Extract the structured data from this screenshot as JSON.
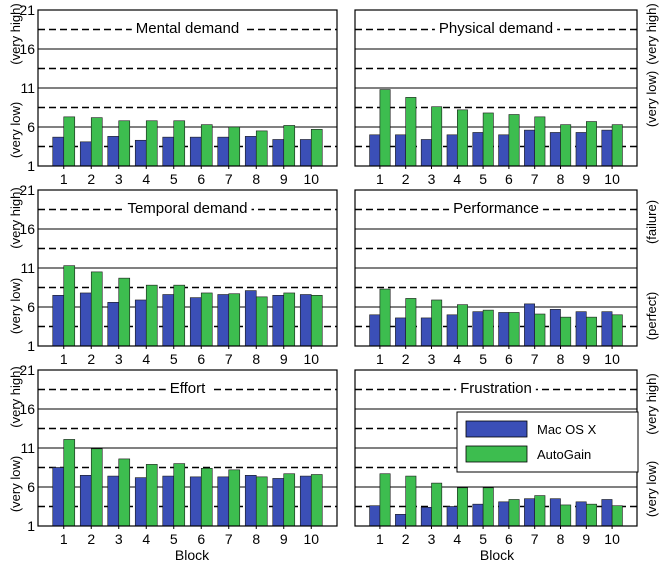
{
  "figure": {
    "x_title": "Block",
    "left_scale": {
      "low": "(very low)",
      "high": "(very high)"
    },
    "right_scale_default": {
      "low": "(very low)",
      "high": "(very high)"
    },
    "right_scale_performance": {
      "low": "(perfect)",
      "high": "(failure)"
    }
  },
  "legend": {
    "entries": [
      {
        "label": "Mac OS X",
        "color": "#3b4fb7"
      },
      {
        "label": "AutoGain",
        "color": "#3dbd4f"
      }
    ]
  },
  "colors": {
    "mac": "#3b4fb7",
    "autogain": "#3dbd4f"
  },
  "chart_data": [
    {
      "type": "bar",
      "title": "Mental demand",
      "categories": [
        "1",
        "2",
        "3",
        "4",
        "5",
        "6",
        "7",
        "8",
        "9",
        "10"
      ],
      "ylim": [
        1,
        21
      ],
      "yticks": [
        1,
        6,
        11,
        16,
        21
      ],
      "gridlines": [
        3.5,
        8.5,
        13.5,
        18.5
      ],
      "grid": "dashed",
      "series": [
        {
          "name": "Mac OS X",
          "values": [
            4.7,
            4.1,
            4.8,
            4.3,
            4.7,
            4.7,
            4.7,
            4.8,
            4.4,
            4.4
          ]
        },
        {
          "name": "AutoGain",
          "values": [
            7.3,
            7.2,
            6.8,
            6.8,
            6.8,
            6.3,
            6.0,
            5.5,
            6.2,
            5.7
          ]
        }
      ]
    },
    {
      "type": "bar",
      "title": "Physical demand",
      "categories": [
        "1",
        "2",
        "3",
        "4",
        "5",
        "6",
        "7",
        "8",
        "9",
        "10"
      ],
      "ylim": [
        1,
        21
      ],
      "yticks": [
        1,
        6,
        11,
        16,
        21
      ],
      "gridlines": [
        3.5,
        8.5,
        13.5,
        18.5
      ],
      "grid": "dashed",
      "series": [
        {
          "name": "Mac OS X",
          "values": [
            5.0,
            5.0,
            4.4,
            5.0,
            5.3,
            5.0,
            5.6,
            5.3,
            5.3,
            5.6
          ]
        },
        {
          "name": "AutoGain",
          "values": [
            10.8,
            9.8,
            8.6,
            8.2,
            7.8,
            7.6,
            7.3,
            6.3,
            6.7,
            6.3
          ]
        }
      ]
    },
    {
      "type": "bar",
      "title": "Temporal demand",
      "categories": [
        "1",
        "2",
        "3",
        "4",
        "5",
        "6",
        "7",
        "8",
        "9",
        "10"
      ],
      "ylim": [
        1,
        21
      ],
      "yticks": [
        1,
        6,
        11,
        16,
        21
      ],
      "gridlines": [
        3.5,
        8.5,
        13.5,
        18.5
      ],
      "grid": "dashed",
      "series": [
        {
          "name": "Mac OS X",
          "values": [
            7.5,
            7.8,
            6.6,
            6.9,
            7.6,
            7.2,
            7.6,
            8.1,
            7.5,
            7.6
          ]
        },
        {
          "name": "AutoGain",
          "values": [
            11.3,
            10.5,
            9.7,
            8.8,
            8.8,
            7.8,
            7.7,
            7.3,
            7.8,
            7.5
          ]
        }
      ]
    },
    {
      "type": "bar",
      "title": "Performance",
      "categories": [
        "1",
        "2",
        "3",
        "4",
        "5",
        "6",
        "7",
        "8",
        "9",
        "10"
      ],
      "ylim": [
        1,
        21
      ],
      "yticks": [
        1,
        6,
        11,
        16,
        21
      ],
      "gridlines": [
        3.5,
        8.5,
        13.5,
        18.5
      ],
      "grid": "dashed",
      "series": [
        {
          "name": "Mac OS X",
          "values": [
            5.0,
            4.6,
            4.6,
            5.0,
            5.4,
            5.3,
            6.4,
            5.7,
            5.4,
            5.4
          ]
        },
        {
          "name": "AutoGain",
          "values": [
            8.3,
            7.1,
            6.9,
            6.3,
            5.6,
            5.3,
            5.1,
            4.7,
            4.7,
            5.0
          ]
        }
      ]
    },
    {
      "type": "bar",
      "title": "Effort",
      "categories": [
        "1",
        "2",
        "3",
        "4",
        "5",
        "6",
        "7",
        "8",
        "9",
        "10"
      ],
      "xlabel": "Block",
      "ylim": [
        1,
        21
      ],
      "yticks": [
        1,
        6,
        11,
        16,
        21
      ],
      "gridlines": [
        3.5,
        8.5,
        13.5,
        18.5
      ],
      "grid": "dashed",
      "series": [
        {
          "name": "Mac OS X",
          "values": [
            8.5,
            7.5,
            7.4,
            7.2,
            7.4,
            7.3,
            7.3,
            7.5,
            7.1,
            7.4
          ]
        },
        {
          "name": "AutoGain",
          "values": [
            12.1,
            10.9,
            9.6,
            8.9,
            9.0,
            8.4,
            8.2,
            7.3,
            7.7,
            7.6
          ]
        }
      ]
    },
    {
      "type": "bar",
      "title": "Frustration",
      "categories": [
        "1",
        "2",
        "3",
        "4",
        "5",
        "6",
        "7",
        "8",
        "9",
        "10"
      ],
      "xlabel": "Block",
      "ylim": [
        1,
        21
      ],
      "yticks": [
        1,
        6,
        11,
        16,
        21
      ],
      "gridlines": [
        3.5,
        8.5,
        13.5,
        18.5
      ],
      "grid": "dashed",
      "legend": "right",
      "series": [
        {
          "name": "Mac OS X",
          "values": [
            3.6,
            2.5,
            3.4,
            3.5,
            3.8,
            4.1,
            4.5,
            4.5,
            4.1,
            4.4
          ]
        },
        {
          "name": "AutoGain",
          "values": [
            7.7,
            7.4,
            6.5,
            5.9,
            5.9,
            4.4,
            4.9,
            3.7,
            3.8,
            3.6
          ]
        }
      ]
    }
  ]
}
